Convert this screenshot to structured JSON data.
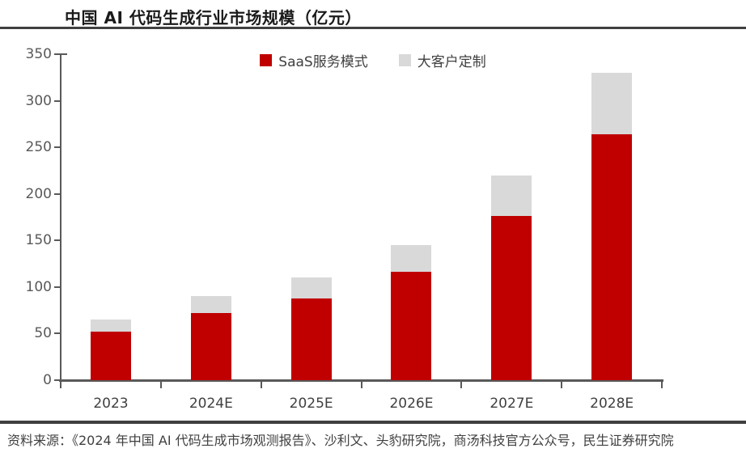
{
  "title": "中国 AI 代码生成行业市场规模（亿元）",
  "legend": {
    "items": [
      {
        "label": "SaaS服务模式",
        "color": "#C00000"
      },
      {
        "label": "大客户定制",
        "color": "#D9D9D9"
      }
    ]
  },
  "source": "资料来源：《2024 年中国 AI 代码生成市场观测报告》、沙利文、头豹研究院，商汤科技官方公众号，民生证券研究院",
  "colors": {
    "saas": "#C00000",
    "custom": "#D9D9D9",
    "axis": "#595959",
    "rule": "#404040",
    "title_text": "#1a1a1a"
  },
  "chart_data": {
    "type": "bar",
    "stacked": true,
    "title": "中国 AI 代码生成行业市场规模（亿元）",
    "categories": [
      "2023",
      "2024E",
      "2025E",
      "2026E",
      "2027E",
      "2028E"
    ],
    "series": [
      {
        "name": "SaaS服务模式",
        "color": "#C00000",
        "values": [
          52,
          72,
          88,
          116,
          176,
          264
        ]
      },
      {
        "name": "大客户定制",
        "color": "#D9D9D9",
        "values": [
          13,
          18,
          22,
          29,
          44,
          66
        ]
      }
    ],
    "totals": [
      65,
      90,
      110,
      145,
      220,
      330
    ],
    "xlabel": "",
    "ylabel": "",
    "ylim": [
      0,
      350
    ],
    "ytick_step": 50,
    "grid": false,
    "legend_position": "top-center"
  }
}
